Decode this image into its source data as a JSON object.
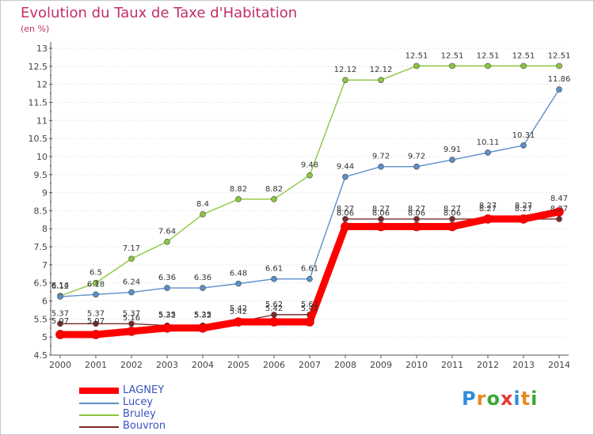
{
  "chart_data": {
    "type": "line",
    "title": "Evolution du Taux de Taxe d'Habitation",
    "subtitle": "(en %)",
    "xlabel": "",
    "ylabel": "",
    "x": [
      "2000",
      "2001",
      "2002",
      "2003",
      "2004",
      "2005",
      "2006",
      "2007",
      "2008",
      "2009",
      "2010",
      "2011",
      "2012",
      "2013",
      "2014"
    ],
    "ylim": [
      4.5,
      13
    ],
    "yticks": [
      "4.5",
      "5",
      "5.5",
      "6",
      "6.5",
      "7",
      "7.5",
      "8",
      "8.5",
      "9",
      "9.5",
      "10",
      "10.5",
      "11",
      "11.5",
      "12",
      "12.5",
      "13"
    ],
    "grid": "horizontal-dotted",
    "legend_position": "bottom-left",
    "series": [
      {
        "name": "LAGNEY",
        "color": "#ff0000",
        "values": [
          5.07,
          5.07,
          5.16,
          5.25,
          5.25,
          5.42,
          5.42,
          5.42,
          8.06,
          8.06,
          8.06,
          8.06,
          8.27,
          8.27,
          8.47
        ],
        "labels": [
          "5.07",
          "5.07",
          "5.16",
          "5.25",
          "5.25",
          "5.42",
          "5.42",
          "5.42",
          "8.06",
          "8.06",
          "8.06",
          "8.06",
          "8.27",
          "8.27",
          "8.47"
        ]
      },
      {
        "name": "Lucey",
        "color": "#5b8fc9",
        "values": [
          6.12,
          6.18,
          6.24,
          6.36,
          6.36,
          6.48,
          6.61,
          6.61,
          9.44,
          9.72,
          9.72,
          9.91,
          10.11,
          10.31,
          11.86
        ],
        "labels": [
          "6.12",
          "6.18",
          "6.24",
          "6.36",
          "6.36",
          "6.48",
          "6.61",
          "6.61",
          "9.44",
          "9.72",
          "9.72",
          "9.91",
          "10.11",
          "10.31",
          "11.86"
        ]
      },
      {
        "name": "Bruley",
        "color": "#8cc63f",
        "values": [
          6.14,
          6.5,
          7.17,
          7.64,
          8.4,
          8.82,
          8.82,
          9.48,
          12.12,
          12.12,
          12.51,
          12.51,
          12.51,
          12.51,
          12.51
        ],
        "labels": [
          "6.14",
          "6.5",
          "7.17",
          "7.64",
          "8.4",
          "8.82",
          "8.82",
          "9.48",
          "12.12",
          "12.12",
          "12.51",
          "12.51",
          "12.51",
          "12.51",
          "12.51"
        ]
      },
      {
        "name": "Bouvron",
        "color": "#7a2a2a",
        "values": [
          5.37,
          5.37,
          5.37,
          5.32,
          5.32,
          5.42,
          5.62,
          5.62,
          8.27,
          8.27,
          8.27,
          8.27,
          8.27,
          8.27,
          8.27
        ],
        "labels": [
          "5.37",
          "5.37",
          "5.37",
          "5.32",
          "5.32",
          "5.42",
          "5.62",
          "5.62",
          "8.27",
          "8.27",
          "8.27",
          "8.27",
          "8.27",
          "8.27",
          "8.27"
        ]
      }
    ]
  },
  "logo": {
    "text": "Proxiti"
  }
}
